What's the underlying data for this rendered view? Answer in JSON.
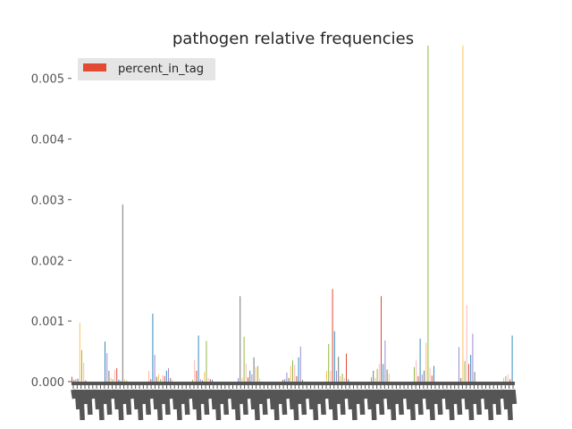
{
  "chart_data": {
    "type": "bar",
    "title": "pathogen relative frequencies",
    "xlabel": "",
    "ylabel": "",
    "ylim": [
      0,
      0.0056
    ],
    "yticks": [
      "0.000",
      "0.001",
      "0.002",
      "0.003",
      "0.004",
      "0.005"
    ],
    "grid": false,
    "legend": {
      "position": "top-left",
      "entries": [
        "percent_in_tag"
      ]
    },
    "series": [
      {
        "name": "percent_in_tag",
        "values": [
          8e-05,
          3e-05,
          4e-05,
          5e-05,
          0.00097,
          0.00052,
          0.00031,
          2e-05,
          0.00066,
          0.00047,
          0.00018,
          6e-05,
          4e-05,
          0.00019,
          0.00022,
          3e-05,
          2e-05,
          0.00292,
          4e-05,
          2e-05,
          0.00018,
          4e-05,
          0.00112,
          0.00044,
          8e-05,
          0.00012,
          4e-05,
          0.00011,
          9e-05,
          0.00018,
          0.00022,
          6e-05,
          3e-05,
          3e-05,
          0.00036,
          0.00018,
          0.00076,
          4e-05,
          2e-05,
          0.00016,
          0.00067,
          6e-05,
          4e-05,
          3e-05,
          6e-05,
          0.00141,
          6e-05,
          0.00074,
          0.0003,
          7e-05,
          0.00018,
          0.00012,
          0.0004,
          0.00024,
          0.00026,
          5e-05,
          3e-05,
          4e-05,
          0.00015,
          6e-05,
          0.00026,
          0.00035,
          0.00028,
          9e-05,
          0.0004,
          0.00058,
          3e-05,
          0.00018,
          0.00062,
          0.00018,
          0.00153,
          0.00083,
          0.00018,
          0.00041,
          9e-05,
          0.00013,
          6e-05,
          0.00046,
          4e-05,
          7e-05,
          0.00018,
          6e-05,
          0.00021,
          0.00029,
          0.00141,
          0.00029,
          0.00068,
          0.0002,
          0.00013,
          0.00024,
          0.00035,
          9e-05,
          0.00071,
          0.00012,
          0.00018,
          0.00064,
          0.00554,
          0.00023,
          0.0001,
          0.00026,
          0.00057,
          6e-05,
          0.00554,
          0.00034,
          0.00126,
          0.00029,
          0.00044,
          0.00079,
          0.00016,
          6e-05,
          9e-05,
          0.00012,
          4e-05,
          0.00076
        ]
      }
    ]
  },
  "colors": {
    "palette": [
      "#E24A33",
      "#348ABD",
      "#988ED5",
      "#777777",
      "#FBC15E",
      "#8EBA42",
      "#FFB5B8"
    ],
    "legend_swatch": "#E24A33",
    "legend_bg": "#E5E5E5",
    "axis_line": "#555555",
    "text": "#262626"
  }
}
